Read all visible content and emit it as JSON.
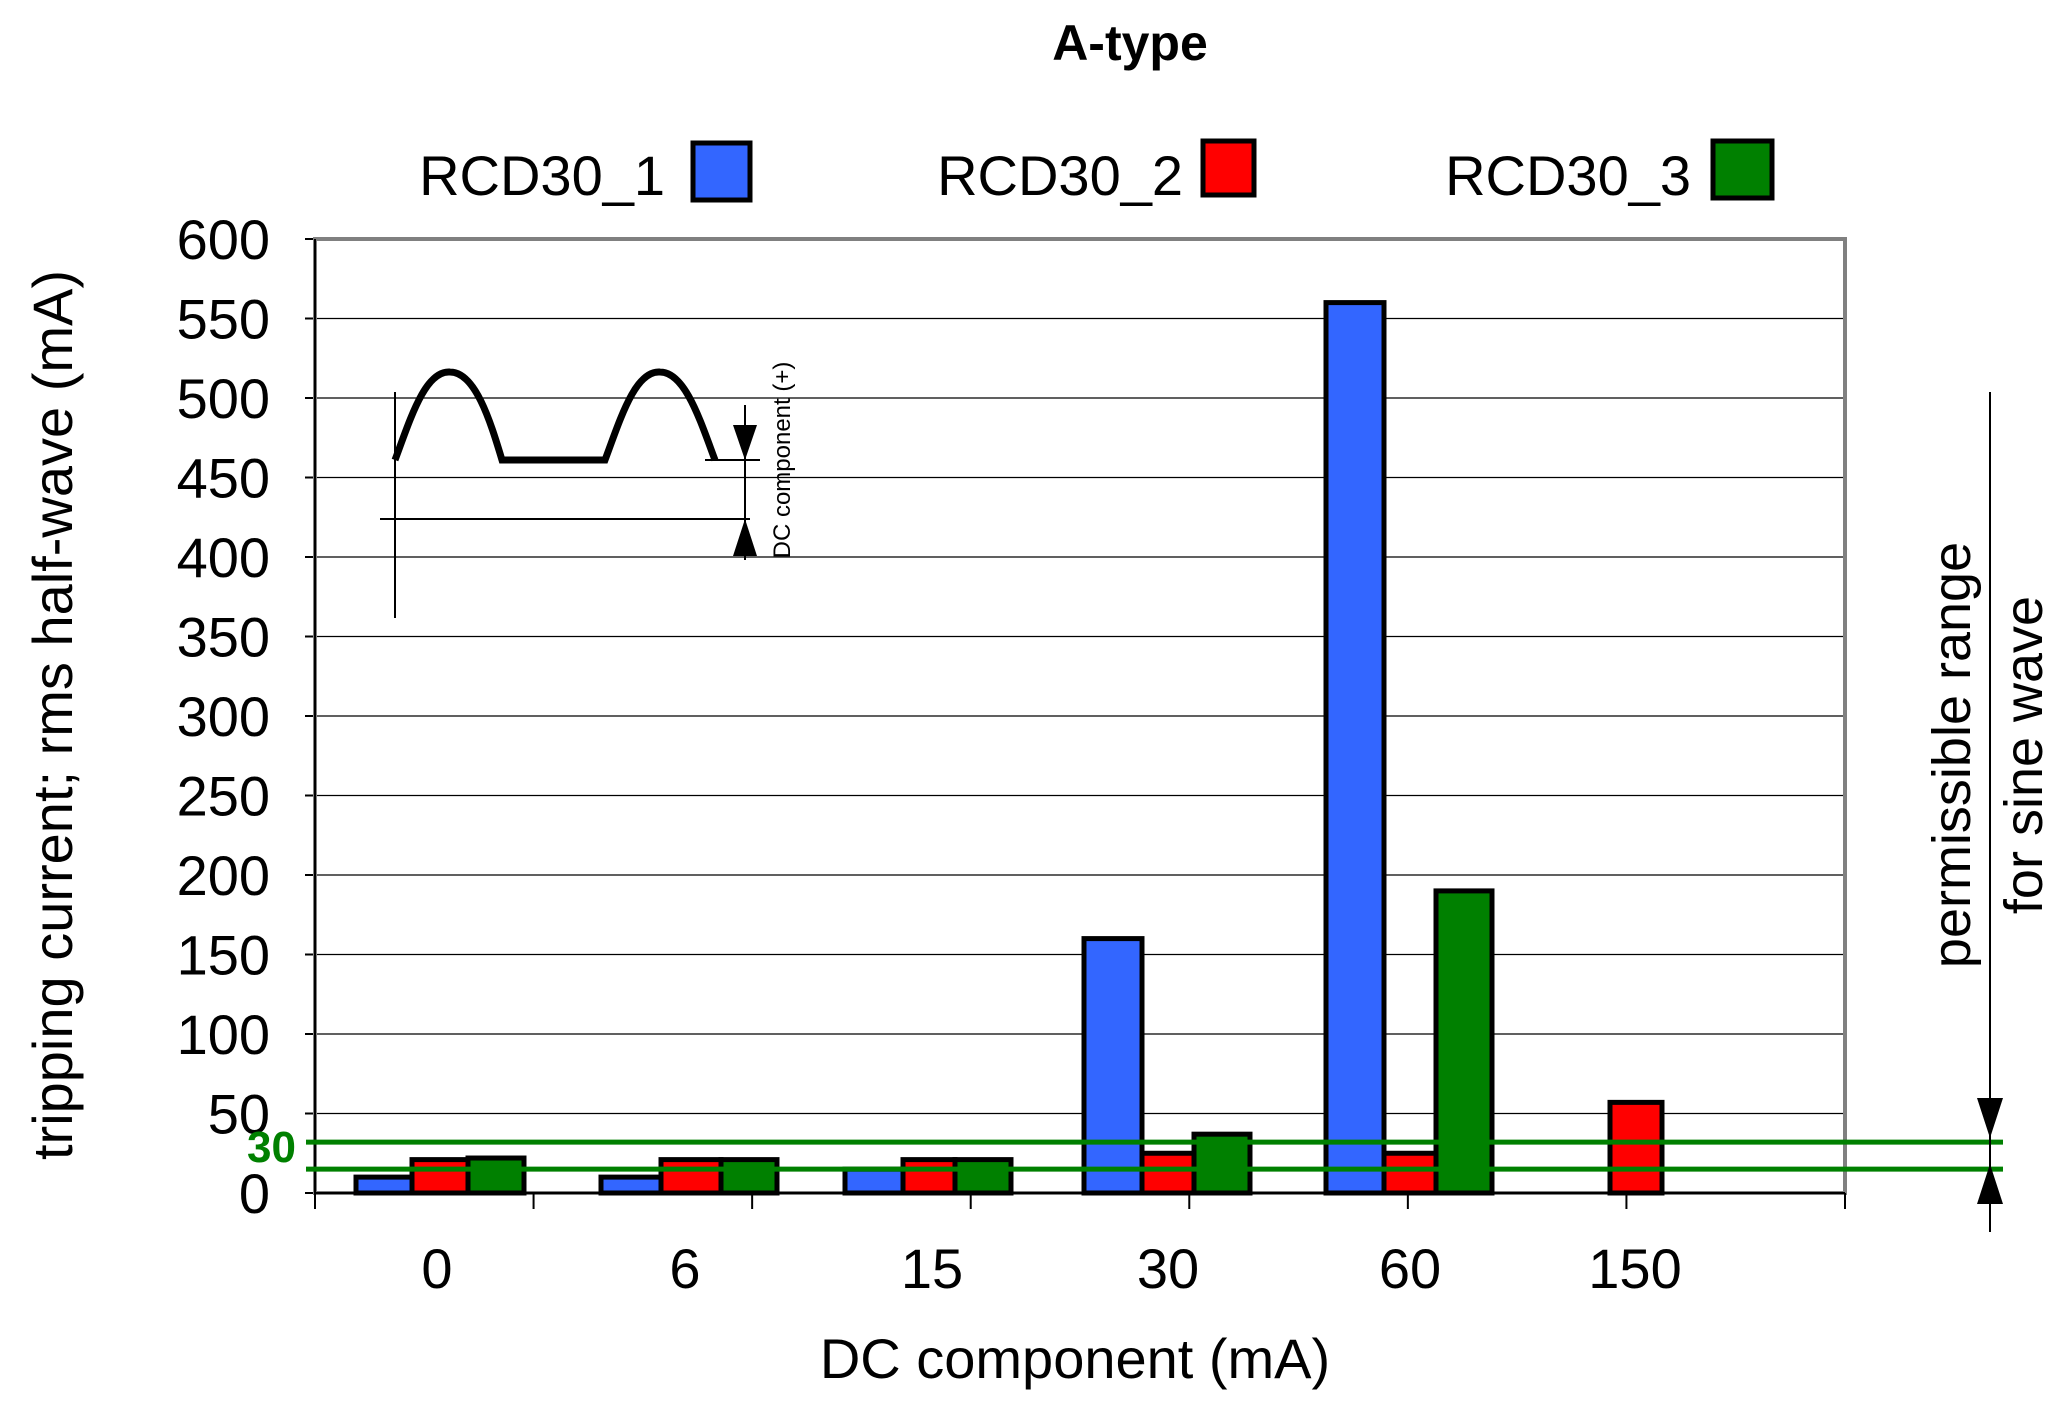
{
  "chart_data": {
    "type": "bar",
    "title": "A-type",
    "xlabel": "DC component (mA)",
    "ylabel": "tripping current; rms half-wave (mA)",
    "ylim": [
      0,
      600
    ],
    "yticks": [
      0,
      50,
      100,
      150,
      200,
      250,
      300,
      350,
      400,
      450,
      500,
      550,
      600
    ],
    "grid": true,
    "legend_position": "top",
    "categories": [
      "0",
      "6",
      "15",
      "30",
      "60",
      "150"
    ],
    "series": [
      {
        "name": "RCD30_1",
        "color": "#3366ff",
        "values": [
          10,
          10,
          15,
          160,
          560,
          null
        ]
      },
      {
        "name": "RCD30_2",
        "color": "#ff0000",
        "values": [
          21,
          21,
          21,
          25,
          25,
          57
        ]
      },
      {
        "name": "RCD30_3",
        "color": "#008000",
        "values": [
          22,
          21,
          21,
          37,
          190,
          null
        ]
      }
    ],
    "reference_lines": {
      "values": [
        15,
        32
      ],
      "color": "#008000",
      "marker_label": "30"
    },
    "annotations": {
      "range_label_line1": "permissible range",
      "range_label_line2": "for sine wave",
      "inset_label": "DC component (+)"
    }
  }
}
